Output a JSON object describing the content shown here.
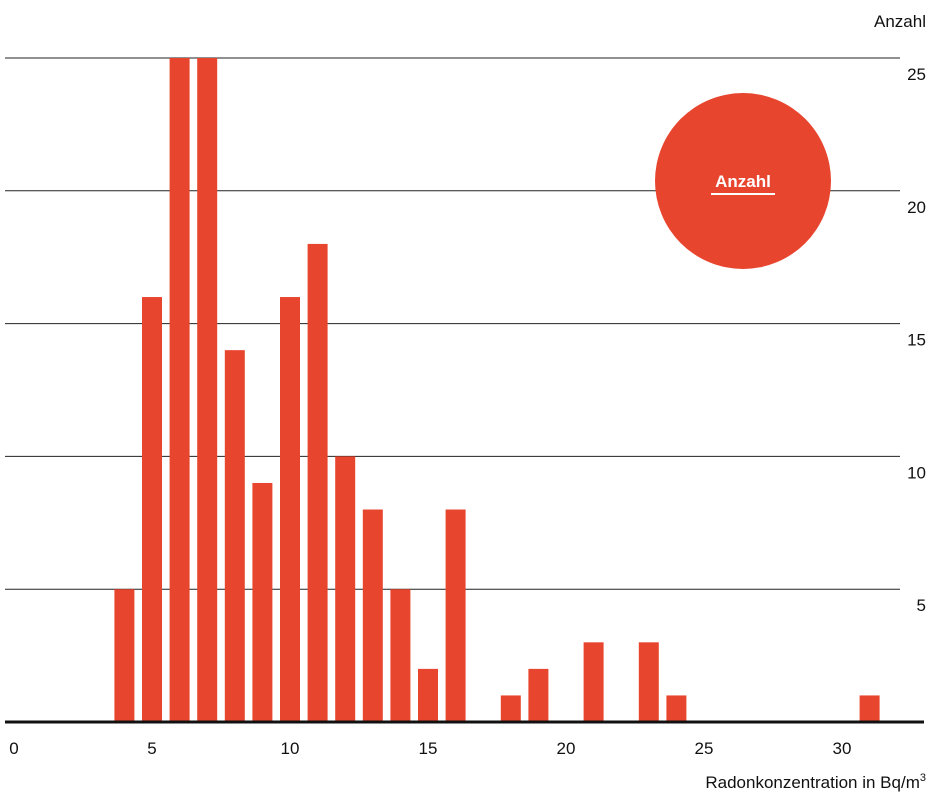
{
  "chart_data": {
    "type": "bar",
    "x_unit_label": "Radonkonzentration in Bq/m",
    "x_unit_superscript": "3",
    "ylabel": "Anzahl",
    "legend": "Anzahl",
    "xlim": [
      0,
      33
    ],
    "ylim": [
      0,
      25
    ],
    "x_ticks": [
      0,
      5,
      10,
      15,
      20,
      25,
      30
    ],
    "y_ticks": [
      5,
      10,
      15,
      20,
      25
    ],
    "grid": true,
    "legend_position": "top-right",
    "bar_color": "#e8452f",
    "x": [
      4,
      5,
      6,
      7,
      8,
      9,
      10,
      11,
      12,
      13,
      14,
      15,
      16,
      18,
      19,
      21,
      23,
      24,
      31
    ],
    "values": [
      5,
      16,
      25,
      25,
      14,
      9,
      16,
      18,
      10,
      8,
      5,
      2,
      8,
      1,
      2,
      3,
      3,
      1,
      1
    ]
  }
}
